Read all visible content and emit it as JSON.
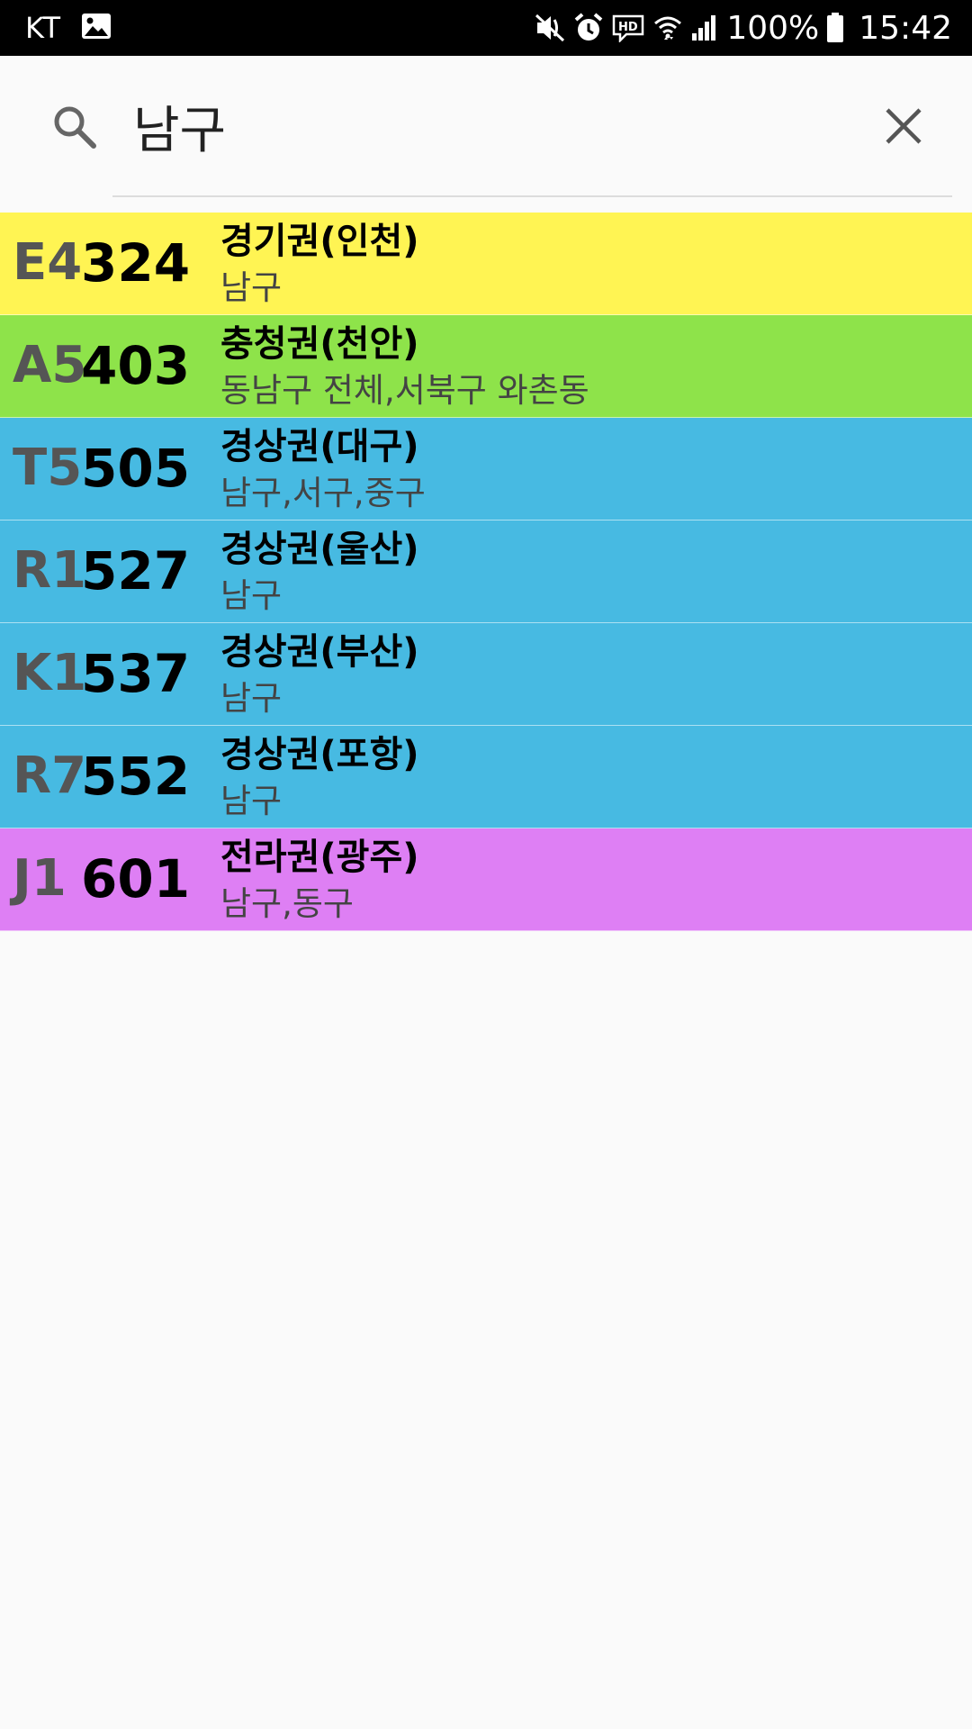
{
  "status_bar": {
    "carrier": "KT",
    "battery": "100%",
    "time": "15:42",
    "icons": [
      "image-notification-icon",
      "mute-icon",
      "alarm-icon",
      "hd-voice-icon",
      "wifi-icon",
      "signal-icon",
      "battery-icon"
    ]
  },
  "search": {
    "query": "남구",
    "icon": "search-icon",
    "clear_icon": "close-icon"
  },
  "results": [
    {
      "code": "E4",
      "number": "324",
      "region": "경기권(인천)",
      "area": "남구",
      "color": "#fff453"
    },
    {
      "code": "A5",
      "number": "403",
      "region": "충청권(천안)",
      "area": "동남구 전체,서북구 와촌동",
      "color": "#8ee34a"
    },
    {
      "code": "T5",
      "number": "505",
      "region": "경상권(대구)",
      "area": "남구,서구,중구",
      "color": "#47bae2"
    },
    {
      "code": "R1",
      "number": "527",
      "region": "경상권(울산)",
      "area": "남구",
      "color": "#47bae2"
    },
    {
      "code": "K1",
      "number": "537",
      "region": "경상권(부산)",
      "area": "남구",
      "color": "#47bae2"
    },
    {
      "code": "R7",
      "number": "552",
      "region": "경상권(포항)",
      "area": "남구",
      "color": "#47bae2"
    },
    {
      "code": "J1",
      "number": "601",
      "region": "전라권(광주)",
      "area": "남구,동구",
      "color": "#de7ff4"
    }
  ]
}
